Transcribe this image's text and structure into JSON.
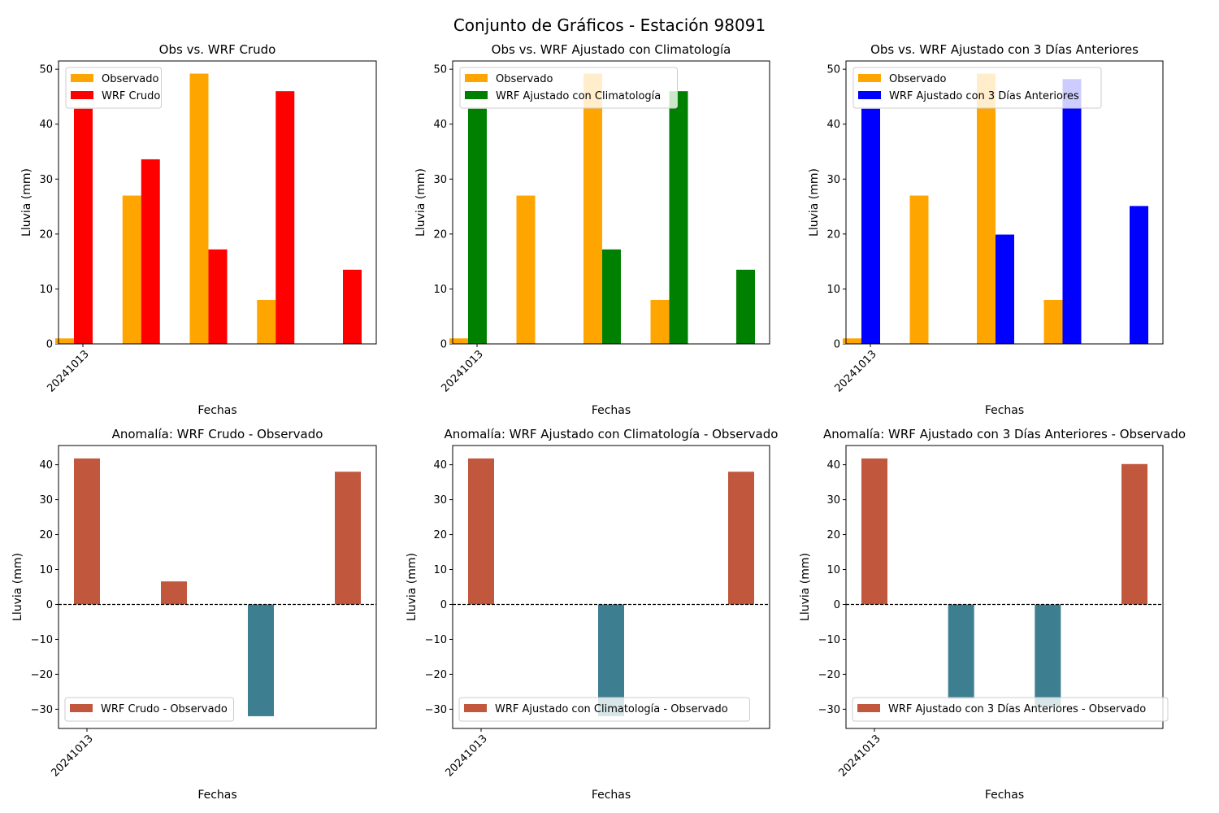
{
  "figure": {
    "suptitle": "Conjunto de Gráficos - Estación 98091"
  },
  "colors": {
    "observado": "#ffa500",
    "wrf_crudo": "#ff0000",
    "wrf_clim": "#008000",
    "wrf_3dias": "#0000ff",
    "anomaly_positive": "#c1573d",
    "anomaly_negative": "#3d7f91"
  },
  "chart_data": [
    {
      "type": "bar",
      "title": "Obs vs. WRF Crudo",
      "xlabel": "Fechas",
      "ylabel": "Lluvia (mm)",
      "ylim": [
        0,
        51.5
      ],
      "yticks": [
        0,
        10,
        20,
        30,
        40,
        50
      ],
      "x_tick_labels": [
        "20241013"
      ],
      "legend_position": "upper-left",
      "series": [
        {
          "name": "Observado",
          "color_key": "observado",
          "values": [
            1.0,
            27.0,
            49.2,
            8.0,
            0.0
          ]
        },
        {
          "name": "WRF Crudo",
          "color_key": "wrf_crudo",
          "values": [
            42.8,
            33.6,
            17.2,
            46.0,
            13.5
          ]
        }
      ]
    },
    {
      "type": "bar",
      "title": "Obs vs. WRF Ajustado con Climatología",
      "xlabel": "Fechas",
      "ylabel": "Lluvia (mm)",
      "ylim": [
        0,
        51.5
      ],
      "yticks": [
        0,
        10,
        20,
        30,
        40,
        50
      ],
      "x_tick_labels": [
        "20241013"
      ],
      "legend_position": "upper-left",
      "series": [
        {
          "name": "Observado",
          "color_key": "observado",
          "values": [
            1.0,
            27.0,
            49.2,
            8.0,
            0.0
          ]
        },
        {
          "name": "WRF Ajustado con Climatología",
          "color_key": "wrf_clim",
          "values": [
            42.8,
            0.0,
            17.2,
            46.0,
            13.5
          ]
        }
      ]
    },
    {
      "type": "bar",
      "title": "Obs vs. WRF Ajustado con 3 Días Anteriores",
      "xlabel": "Fechas",
      "ylabel": "Lluvia (mm)",
      "ylim": [
        0,
        51.5
      ],
      "yticks": [
        0,
        10,
        20,
        30,
        40,
        50
      ],
      "x_tick_labels": [
        "20241013"
      ],
      "legend_position": "upper-left",
      "series": [
        {
          "name": "Observado",
          "color_key": "observado",
          "values": [
            1.0,
            27.0,
            49.2,
            8.0,
            0.0
          ]
        },
        {
          "name": "WRF Ajustado con 3 Días Anteriores",
          "color_key": "wrf_3dias",
          "values": [
            42.8,
            0.0,
            19.9,
            48.2,
            25.1
          ]
        }
      ]
    },
    {
      "type": "bar",
      "title": "Anomalía: WRF Crudo - Observado",
      "xlabel": "Fechas",
      "ylabel": "Lluvia (mm)",
      "ylim": [
        -35.5,
        45.5
      ],
      "yticks": [
        -30,
        -20,
        -10,
        0,
        10,
        20,
        30,
        40
      ],
      "x_tick_labels": [
        "20241013"
      ],
      "legend_position": "lower-left",
      "zero_line": true,
      "series": [
        {
          "name": "WRF Crudo - Observado",
          "values": [
            41.8,
            6.6,
            -32.0,
            38.0
          ]
        }
      ]
    },
    {
      "type": "bar",
      "title": "Anomalía: WRF Ajustado con Climatología - Observado",
      "xlabel": "Fechas",
      "ylabel": "Lluvia (mm)",
      "ylim": [
        -35.5,
        45.5
      ],
      "yticks": [
        -30,
        -20,
        -10,
        0,
        10,
        20,
        30,
        40
      ],
      "x_tick_labels": [
        "20241013"
      ],
      "legend_position": "lower-left",
      "zero_line": true,
      "series": [
        {
          "name": "WRF Ajustado con Climatología - Observado",
          "values": [
            41.8,
            -32.0,
            38.0
          ]
        }
      ]
    },
    {
      "type": "bar",
      "title": "Anomalía: WRF Ajustado con 3 Días Anteriores - Observado",
      "xlabel": "Fechas",
      "ylabel": "Lluvia (mm)",
      "ylim": [
        -35.5,
        45.5
      ],
      "yticks": [
        -30,
        -20,
        -10,
        0,
        10,
        20,
        30,
        40
      ],
      "x_tick_labels": [
        "20241013"
      ],
      "legend_position": "lower-left",
      "zero_line": true,
      "series": [
        {
          "name": "WRF Ajustado con 3 Días Anteriores - Observado",
          "values": [
            41.8,
            -27.0,
            -29.3,
            40.2
          ]
        }
      ]
    }
  ]
}
